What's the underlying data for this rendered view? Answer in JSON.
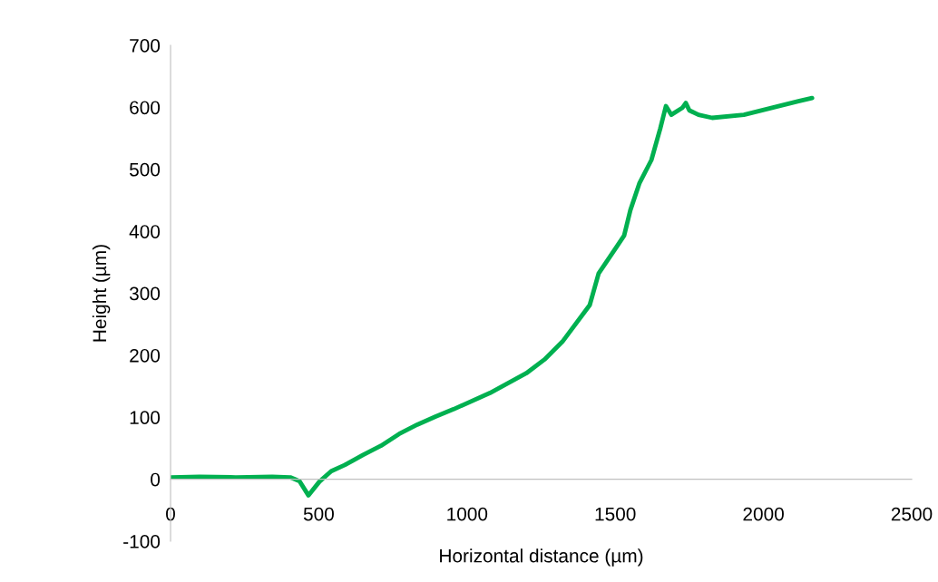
{
  "chart_data": {
    "type": "line",
    "xlabel": "Horizontal distance (µm)",
    "ylabel": "Height (µm)",
    "series": [
      {
        "color": "#00b050",
        "x": [
          0,
          98,
          220,
          343,
          404,
          435,
          465,
          502,
          542,
          588,
          649,
          710,
          771,
          832,
          894,
          955,
          1077,
          1200,
          1261,
          1322,
          1414,
          1444,
          1506,
          1530,
          1551,
          1582,
          1622,
          1652,
          1671,
          1689,
          1726,
          1738,
          1750,
          1781,
          1827,
          1934,
          2026,
          2118,
          2164
        ],
        "values": [
          3,
          4,
          3,
          4,
          3,
          -3,
          -26,
          -4,
          13,
          23,
          39,
          54,
          73,
          88,
          101,
          113,
          139,
          171,
          193,
          222,
          281,
          332,
          376,
          393,
          434,
          478,
          515,
          566,
          602,
          588,
          599,
          607,
          595,
          588,
          583,
          588,
          599,
          610,
          615
        ]
      }
    ],
    "xlim": [
      0,
      2500
    ],
    "xticks": [
      0,
      500,
      1000,
      1500,
      2000,
      2500
    ],
    "ylim": [
      -100,
      700
    ],
    "yticks": [
      -100,
      0,
      100,
      200,
      300,
      400,
      500,
      600,
      700
    ],
    "grid": false,
    "legend": false,
    "marker": "none",
    "line_style": "solid"
  }
}
